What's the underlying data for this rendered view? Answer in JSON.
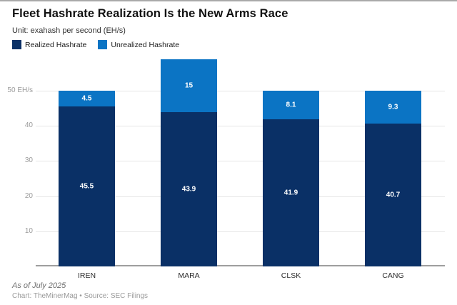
{
  "header": {
    "title": "Fleet Hashrate Realization Is the New Arms Race",
    "subtitle": "Unit: exahash per second (EH/s)"
  },
  "chart_data": {
    "type": "bar",
    "stacked": true,
    "categories": [
      "IREN",
      "MARA",
      "CLSK",
      "CANG"
    ],
    "series": [
      {
        "name": "Realized Hashrate",
        "color": "#0a3066",
        "values": [
          45.5,
          43.9,
          41.9,
          40.7
        ]
      },
      {
        "name": "Unrealized Hashrate",
        "color": "#0b74c4",
        "values": [
          4.5,
          15,
          8.1,
          9.3
        ]
      }
    ],
    "totals": [
      50.0,
      58.9,
      50.0,
      50.0
    ],
    "yticks": [
      10,
      20,
      30,
      40,
      50
    ],
    "ytick_top_label": "50 EH/s",
    "ylim": [
      0,
      58.9
    ],
    "grid": "horizontal",
    "legend_position": "top-left",
    "bar_label_color": "#ffffff"
  },
  "colors": {
    "realized": "#0a3066",
    "unrealized": "#0b74c4",
    "gridline": "#e6e6e6",
    "axis_baseline": "#9e9e9e",
    "tick_text": "#9b9b9b"
  },
  "footer": {
    "as_of": "As of July 2025",
    "credit": "Chart: TheMinerMag • Source: SEC Filings"
  }
}
